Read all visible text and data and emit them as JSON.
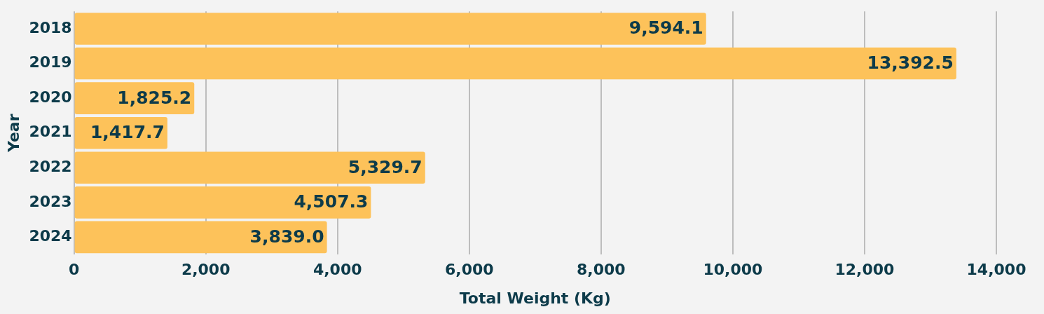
{
  "chart_data": {
    "type": "bar",
    "orientation": "horizontal",
    "xlabel": "Total Weight (Kg)",
    "ylabel": "Year",
    "categories": [
      "2018",
      "2019",
      "2020",
      "2021",
      "2022",
      "2023",
      "2024"
    ],
    "values": [
      9594.1,
      13392.5,
      1825.2,
      1417.7,
      5329.7,
      4507.3,
      3839.0
    ],
    "value_labels": [
      "9,594.1",
      "13,392.5",
      "1,825.2",
      "1,417.7",
      "5,329.7",
      "4,507.3",
      "3,839.0"
    ],
    "color": "#fdc25a",
    "xlim": [
      0,
      14000
    ],
    "xticks": [
      {
        "value": 0,
        "label": "0"
      },
      {
        "value": 2000,
        "label": "2,000"
      },
      {
        "value": 4000,
        "label": "4,000"
      },
      {
        "value": 6000,
        "label": "6,000"
      },
      {
        "value": 8000,
        "label": "8,000"
      },
      {
        "value": 10000,
        "label": "10,000"
      },
      {
        "value": 12000,
        "label": "12,000"
      },
      {
        "value": 14000,
        "label": "14,000"
      }
    ],
    "grid": "x",
    "legend": false
  }
}
